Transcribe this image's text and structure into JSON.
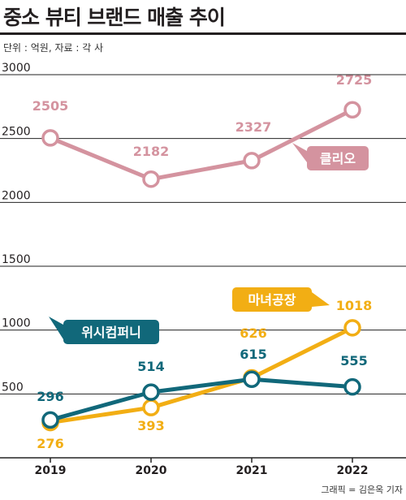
{
  "header": {
    "title": "중소 뷰티 브랜드 매출 추이",
    "unit_note": "단위 : 억원, 자료 : 각 사"
  },
  "credit": "그래픽 = 김은옥 기자",
  "chart_data": {
    "type": "line",
    "x": [
      "2019",
      "2020",
      "2021",
      "2022"
    ],
    "ylim": [
      0,
      3000
    ],
    "yticks": [
      "500",
      "1000",
      "1500",
      "2000",
      "2500",
      "3000"
    ],
    "grid": true,
    "legend": "inline labels",
    "series": [
      {
        "name": "클리오",
        "values": [
          2505,
          2182,
          2327,
          2725
        ],
        "color": "#d4939f",
        "labels": [
          "2505",
          "2182",
          "2327",
          "2725"
        ]
      },
      {
        "name": "마녀공장",
        "values": [
          276,
          393,
          626,
          1018
        ],
        "color": "#f2ae14",
        "labels": [
          "276",
          "393",
          "626",
          "1018"
        ]
      },
      {
        "name": "위시컴퍼니",
        "values": [
          296,
          514,
          615,
          555
        ],
        "color": "#11687a",
        "labels": [
          "296",
          "514",
          "615",
          "555"
        ]
      }
    ]
  }
}
